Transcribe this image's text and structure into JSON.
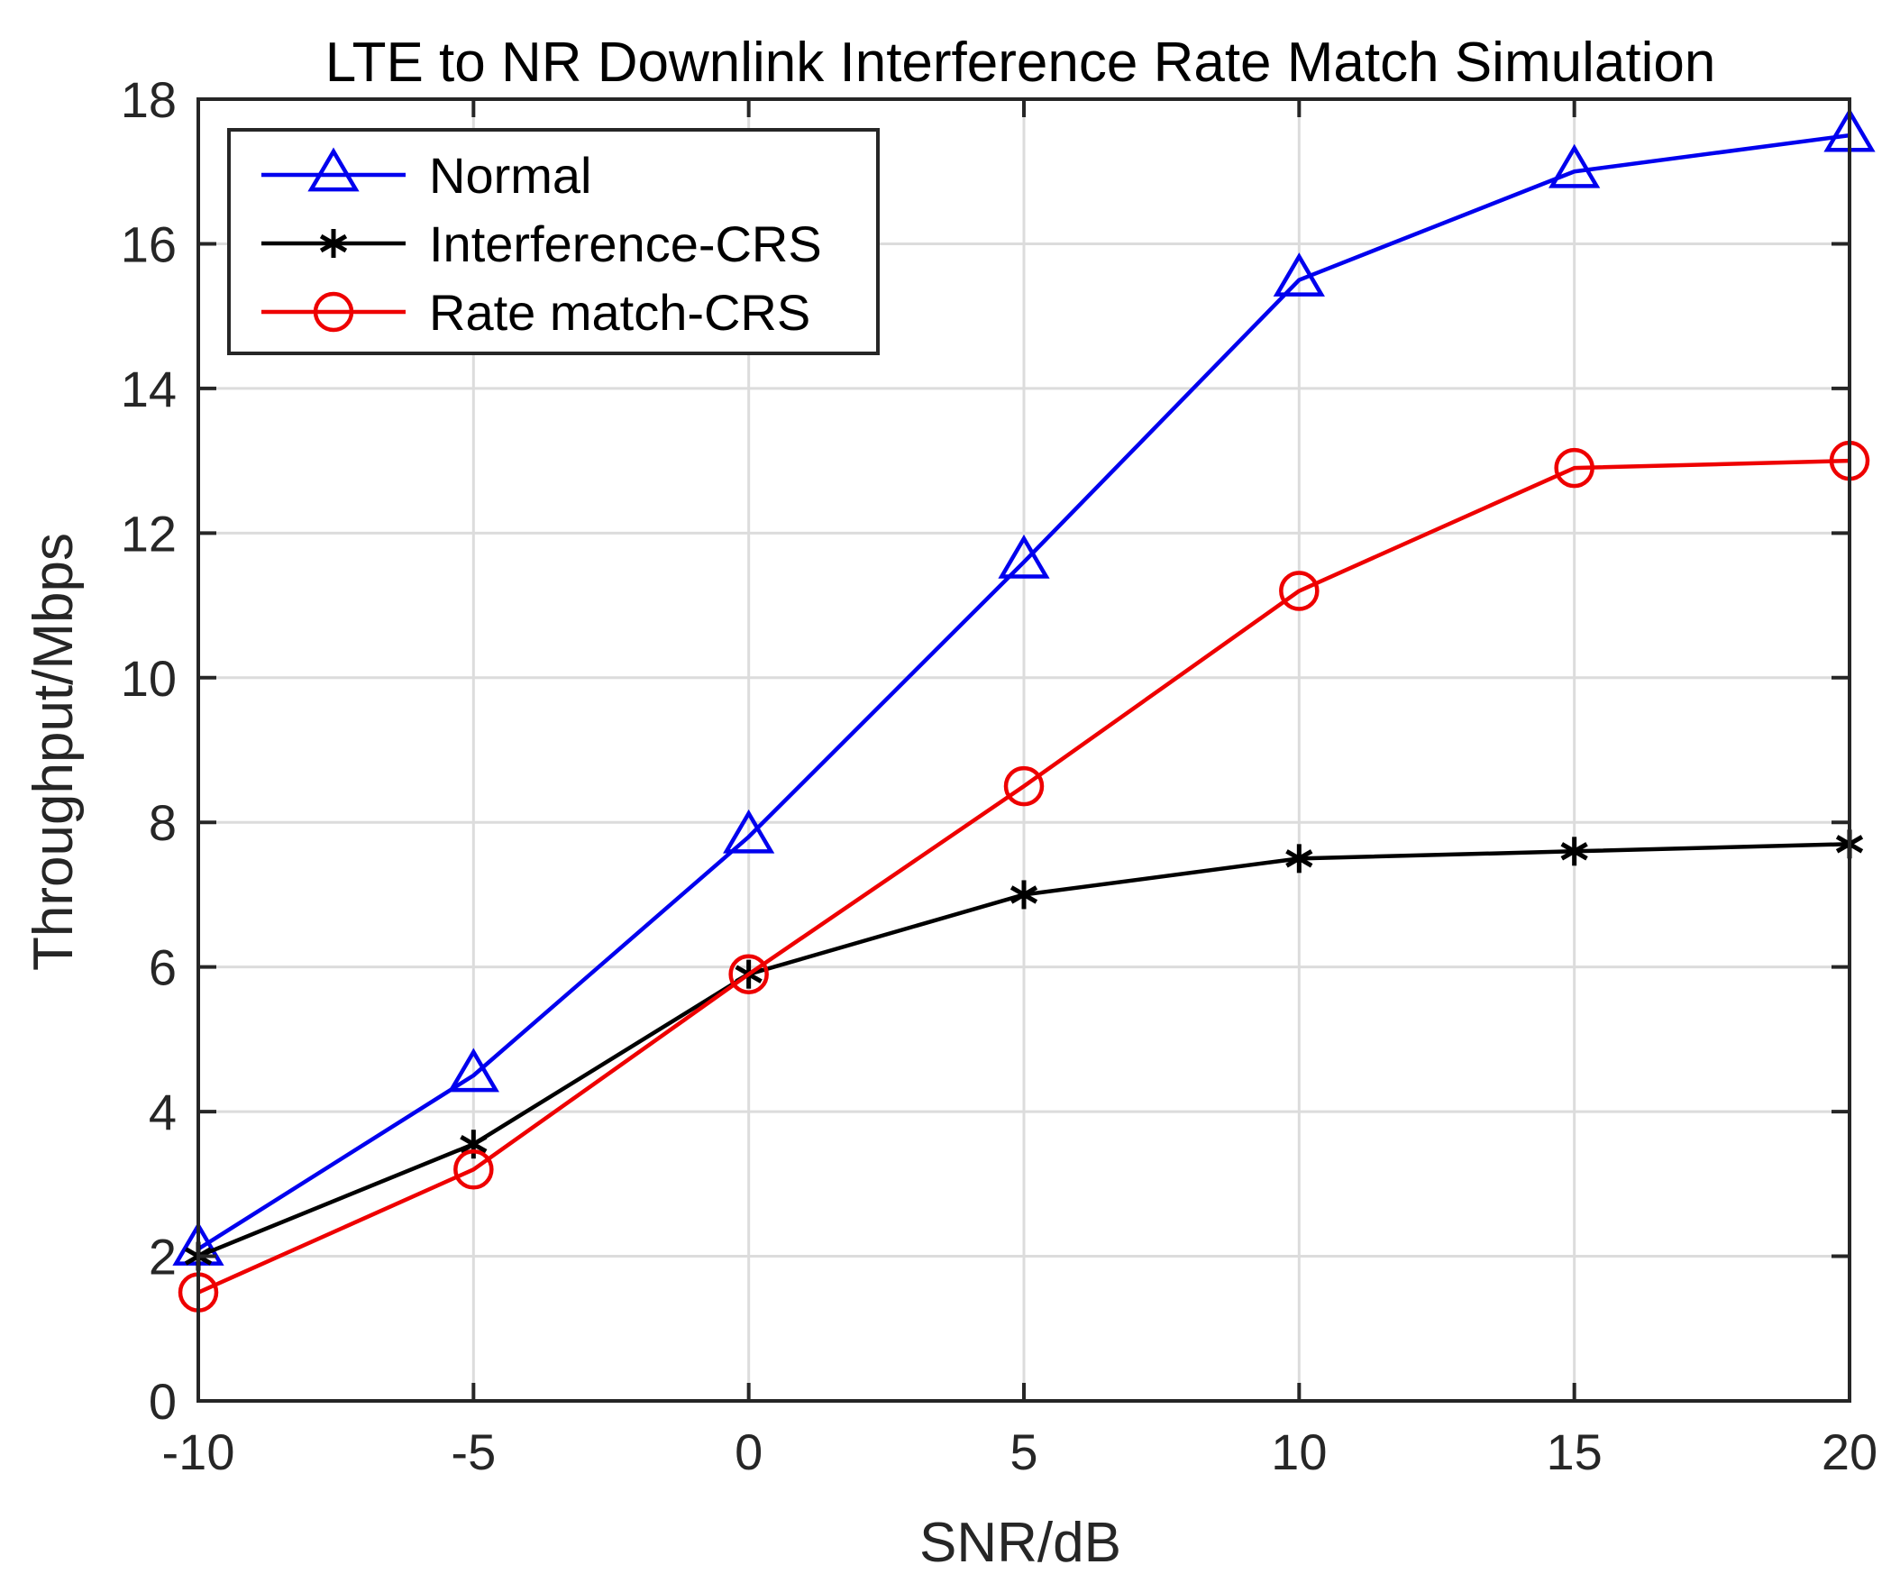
{
  "chart_data": {
    "type": "line",
    "title": "LTE to NR Downlink Interference Rate Match Simulation",
    "xlabel": "SNR/dB",
    "ylabel": "Throughput/Mbps",
    "xlim": [
      -10,
      20
    ],
    "ylim": [
      0,
      18
    ],
    "xticks": [
      -10,
      -5,
      0,
      5,
      10,
      15,
      20
    ],
    "yticks": [
      0,
      2,
      4,
      6,
      8,
      10,
      12,
      14,
      16,
      18
    ],
    "grid": true,
    "legend_position": "top-left",
    "x": [
      -10,
      -5,
      0,
      5,
      10,
      15,
      20
    ],
    "series": [
      {
        "name": "Normal",
        "color": "#0000ee",
        "marker": "triangle",
        "values": [
          2.1,
          4.5,
          7.8,
          11.6,
          15.5,
          17.0,
          17.5
        ]
      },
      {
        "name": "Interference-CRS",
        "color": "#000000",
        "marker": "asterisk",
        "values": [
          2.0,
          3.55,
          5.9,
          7.0,
          7.5,
          7.6,
          7.7
        ]
      },
      {
        "name": "Rate match-CRS",
        "color": "#ee0000",
        "marker": "circle",
        "values": [
          1.5,
          3.2,
          5.9,
          8.5,
          11.2,
          12.9,
          13.0
        ]
      }
    ]
  }
}
